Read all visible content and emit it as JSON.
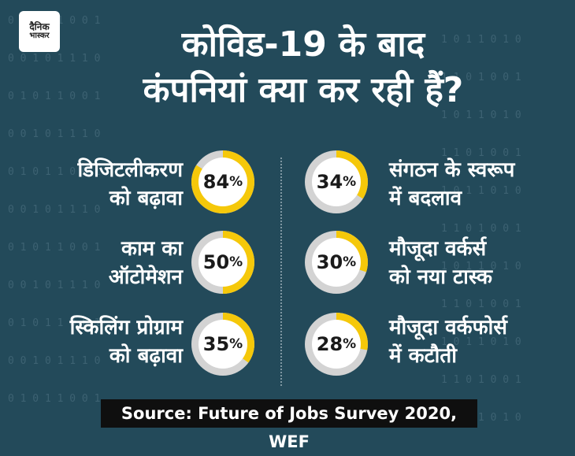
{
  "brand": {
    "line1": "दैनिक",
    "line2": "भास्कर"
  },
  "title": {
    "line1": "कोविड-19 के बाद",
    "line2": "कंपनियां क्या कर रही हैं?"
  },
  "source": "Source: Future of Jobs Survey 2020, WEF",
  "colors": {
    "background": "#234a5a",
    "fill": "#f5c80a",
    "track": "#d3d3d3",
    "center": "#ffffff",
    "source_bg": "#0f0f0f"
  },
  "chart_data": {
    "type": "donut",
    "unit": "%",
    "items": [
      {
        "label_line1": "डिजिटलीकरण",
        "label_line2": "को बढ़ावा",
        "value": 84,
        "value_text": "84",
        "column": "left"
      },
      {
        "label_line1": "काम का",
        "label_line2": "ऑटोमेशन",
        "value": 50,
        "value_text": "50",
        "column": "left"
      },
      {
        "label_line1": "स्किलिंग प्रोग्राम",
        "label_line2": "को बढ़ावा",
        "value": 35,
        "value_text": "35",
        "column": "left"
      },
      {
        "label_line1": "संगठन के स्वरूप",
        "label_line2": "में बदलाव",
        "value": 34,
        "value_text": "34",
        "column": "right"
      },
      {
        "label_line1": "मौजूदा वर्कर्स",
        "label_line2": "को नया टास्क",
        "value": 30,
        "value_text": "30",
        "column": "right"
      },
      {
        "label_line1": "मौजूदा वर्कफोर्स",
        "label_line2": "में कटौती",
        "value": 28,
        "value_text": "28",
        "column": "right"
      }
    ]
  }
}
